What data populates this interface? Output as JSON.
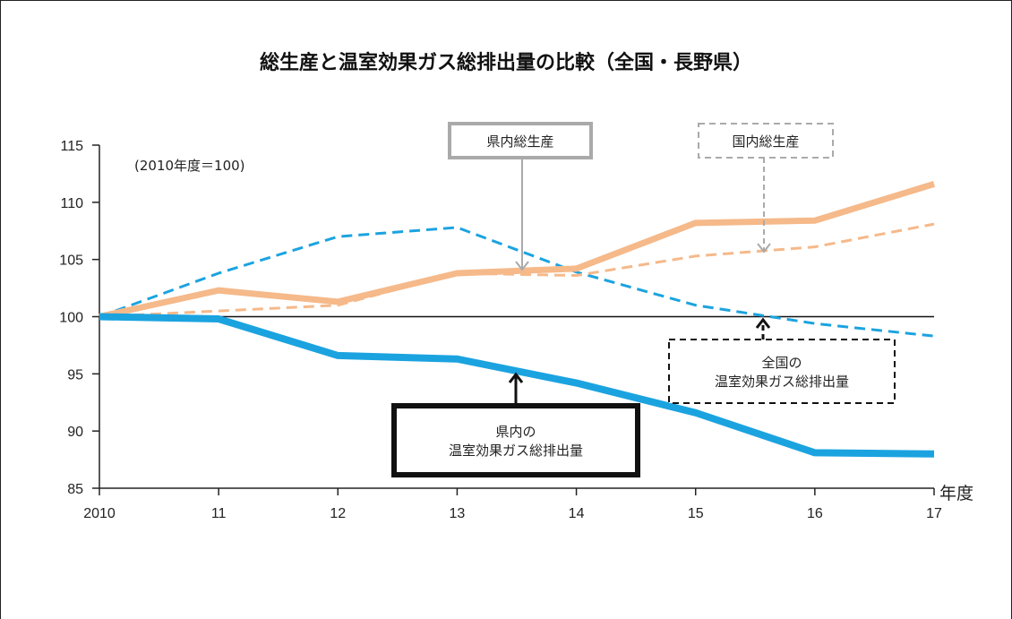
{
  "chart_data": {
    "type": "line",
    "title": "総生産と温室効果ガス総排出量の比較（全国・長野県）",
    "note": "(2010年度＝100)",
    "xlabel": "年度",
    "categories": [
      "2010",
      "11",
      "12",
      "13",
      "14",
      "15",
      "16",
      "17"
    ],
    "ylim": [
      85,
      115
    ],
    "yticks": [
      "85",
      "90",
      "95",
      "100",
      "105",
      "110",
      "115"
    ],
    "reference_line": 100,
    "series": [
      {
        "key": "pref_gdp",
        "color": "#f5b98a",
        "dash": "solid",
        "width": 7,
        "values": [
          100.0,
          102.3,
          101.3,
          103.8,
          104.2,
          108.2,
          108.4,
          111.6
        ]
      },
      {
        "key": "national_gdp",
        "color": "#f5b98a",
        "dash": "dashed",
        "width": 3,
        "values": [
          100.0,
          100.5,
          101.0,
          103.8,
          103.6,
          105.3,
          106.1,
          108.1
        ]
      },
      {
        "key": "national_ghg",
        "color": "#1ba3e0",
        "dash": "dashed",
        "width": 3,
        "values": [
          100.0,
          103.8,
          107.0,
          107.8,
          103.9,
          101.0,
          99.4,
          98.3
        ]
      },
      {
        "key": "pref_ghg",
        "color": "#1ba3e0",
        "dash": "solid",
        "width": 8,
        "values": [
          100.0,
          99.8,
          96.6,
          96.3,
          94.2,
          91.6,
          88.1,
          88.0
        ]
      }
    ],
    "callouts": [
      {
        "key": "pref_gdp",
        "lines": [
          "県内総生産"
        ],
        "border": "gray-solid"
      },
      {
        "key": "national_gdp",
        "lines": [
          "国内総生産"
        ],
        "border": "gray-dashed"
      },
      {
        "key": "pref_ghg",
        "lines": [
          "県内の",
          "温室効果ガス総排出量"
        ],
        "border": "black-solid-thick"
      },
      {
        "key": "national_ghg",
        "lines": [
          "全国の",
          "温室効果ガス総排出量"
        ],
        "border": "black-dashed"
      }
    ]
  }
}
